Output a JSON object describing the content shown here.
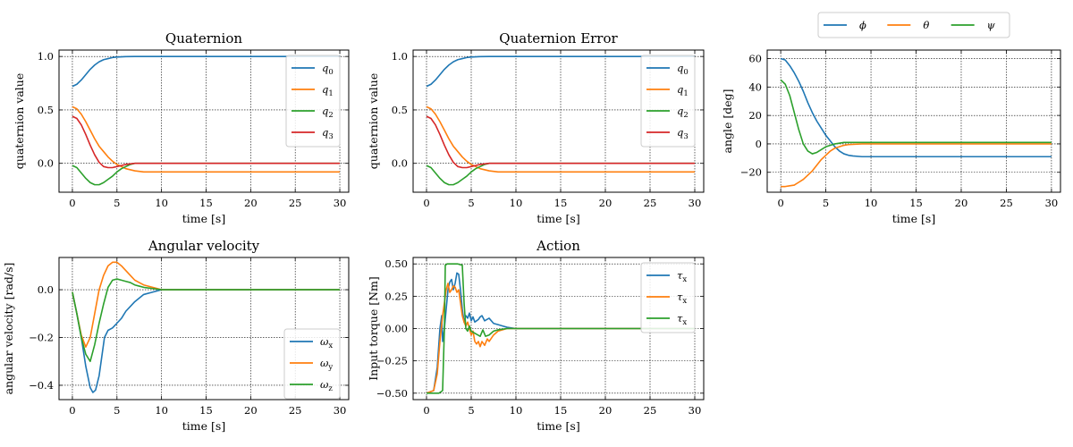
{
  "colors": {
    "blue": "#1f77b4",
    "orange": "#ff7f0e",
    "green": "#2ca02c",
    "red": "#d62728"
  },
  "chart_data": [
    {
      "type": "line",
      "title": "Quaternion",
      "xlabel": "time [s]",
      "ylabel": "quaternion value",
      "xlim": [
        -1.5,
        31
      ],
      "ylim": [
        -0.27,
        1.06
      ],
      "xticks": [
        0,
        5,
        10,
        15,
        20,
        25,
        30
      ],
      "yticks": [
        0.0,
        0.5,
        1.0
      ],
      "ytick_labels": [
        "0.0",
        "0.5",
        "1.0"
      ],
      "grid": true,
      "legend_position": "upper-right",
      "series": [
        {
          "name": "q0",
          "sub": "0",
          "color": "#1f77b4",
          "x": [
            0,
            0.5,
            1,
            1.5,
            2,
            2.5,
            3,
            3.5,
            4,
            4.5,
            5,
            6,
            7,
            8,
            10,
            15,
            20,
            25,
            30
          ],
          "y": [
            0.72,
            0.74,
            0.78,
            0.83,
            0.88,
            0.92,
            0.95,
            0.97,
            0.98,
            0.99,
            0.995,
            0.999,
            1.0,
            1.0,
            1.0,
            1.0,
            1.0,
            1.0,
            1.0
          ]
        },
        {
          "name": "q1",
          "sub": "1",
          "color": "#ff7f0e",
          "x": [
            0,
            0.5,
            1,
            1.5,
            2,
            2.5,
            3,
            3.5,
            4,
            4.5,
            5,
            5.5,
            6,
            7,
            8,
            10,
            15,
            20,
            25,
            30
          ],
          "y": [
            0.53,
            0.51,
            0.46,
            0.39,
            0.31,
            0.23,
            0.16,
            0.11,
            0.06,
            0.02,
            -0.01,
            -0.03,
            -0.05,
            -0.07,
            -0.08,
            -0.08,
            -0.08,
            -0.08,
            -0.08,
            -0.08
          ]
        },
        {
          "name": "q2",
          "sub": "2",
          "color": "#2ca02c",
          "x": [
            0,
            0.5,
            1,
            1.5,
            2,
            2.5,
            3,
            3.5,
            4,
            4.5,
            5,
            5.5,
            6,
            6.5,
            7,
            8,
            10,
            15,
            20,
            25,
            30
          ],
          "y": [
            -0.02,
            -0.04,
            -0.09,
            -0.14,
            -0.18,
            -0.2,
            -0.2,
            -0.18,
            -0.15,
            -0.12,
            -0.08,
            -0.05,
            -0.03,
            -0.01,
            0.0,
            0.0,
            0.0,
            0.0,
            0.0,
            0.0,
            0.0
          ]
        },
        {
          "name": "q3",
          "sub": "3",
          "color": "#d62728",
          "x": [
            0,
            0.5,
            1,
            1.5,
            2,
            2.5,
            3,
            3.5,
            4,
            4.5,
            5,
            5.5,
            6,
            7,
            8,
            10,
            15,
            20,
            25,
            30
          ],
          "y": [
            0.44,
            0.42,
            0.36,
            0.27,
            0.17,
            0.08,
            0.01,
            -0.03,
            -0.04,
            -0.04,
            -0.03,
            -0.02,
            -0.01,
            0.0,
            0.0,
            0.0,
            0.0,
            0.0,
            0.0,
            0.0
          ]
        }
      ]
    },
    {
      "type": "line",
      "title": "Quaternion Error",
      "xlabel": "time [s]",
      "ylabel": "quaternion value",
      "xlim": [
        -1.5,
        31
      ],
      "ylim": [
        -0.27,
        1.06
      ],
      "xticks": [
        0,
        5,
        10,
        15,
        20,
        25,
        30
      ],
      "yticks": [
        0.0,
        0.5,
        1.0
      ],
      "ytick_labels": [
        "0.0",
        "0.5",
        "1.0"
      ],
      "grid": true,
      "legend_position": "upper-right",
      "series": [
        {
          "name": "q0",
          "sub": "0",
          "color": "#1f77b4",
          "x": [
            0,
            0.5,
            1,
            1.5,
            2,
            2.5,
            3,
            3.5,
            4,
            4.5,
            5,
            6,
            7,
            8,
            10,
            15,
            20,
            25,
            30
          ],
          "y": [
            0.72,
            0.74,
            0.78,
            0.83,
            0.88,
            0.92,
            0.95,
            0.97,
            0.98,
            0.99,
            0.995,
            0.999,
            1.0,
            1.0,
            1.0,
            1.0,
            1.0,
            1.0,
            1.0
          ]
        },
        {
          "name": "q1",
          "sub": "1",
          "color": "#ff7f0e",
          "x": [
            0,
            0.5,
            1,
            1.5,
            2,
            2.5,
            3,
            3.5,
            4,
            4.5,
            5,
            5.5,
            6,
            7,
            8,
            10,
            15,
            20,
            25,
            30
          ],
          "y": [
            0.53,
            0.51,
            0.46,
            0.39,
            0.31,
            0.23,
            0.16,
            0.11,
            0.06,
            0.02,
            -0.01,
            -0.03,
            -0.05,
            -0.07,
            -0.08,
            -0.08,
            -0.08,
            -0.08,
            -0.08,
            -0.08
          ]
        },
        {
          "name": "q2",
          "sub": "2",
          "color": "#2ca02c",
          "x": [
            0,
            0.5,
            1,
            1.5,
            2,
            2.5,
            3,
            3.5,
            4,
            4.5,
            5,
            5.5,
            6,
            6.5,
            7,
            8,
            10,
            15,
            20,
            25,
            30
          ],
          "y": [
            -0.02,
            -0.04,
            -0.09,
            -0.14,
            -0.18,
            -0.2,
            -0.2,
            -0.18,
            -0.15,
            -0.12,
            -0.08,
            -0.05,
            -0.03,
            -0.01,
            0.0,
            0.0,
            0.0,
            0.0,
            0.0,
            0.0,
            0.0
          ]
        },
        {
          "name": "q3",
          "sub": "3",
          "color": "#d62728",
          "x": [
            0,
            0.5,
            1,
            1.5,
            2,
            2.5,
            3,
            3.5,
            4,
            4.5,
            5,
            5.5,
            6,
            7,
            8,
            10,
            15,
            20,
            25,
            30
          ],
          "y": [
            0.44,
            0.42,
            0.36,
            0.27,
            0.17,
            0.08,
            0.01,
            -0.03,
            -0.04,
            -0.04,
            -0.03,
            -0.02,
            -0.01,
            0.0,
            0.0,
            0.0,
            0.0,
            0.0,
            0.0,
            0.0
          ]
        }
      ]
    },
    {
      "type": "line",
      "title": "",
      "xlabel": "time [s]",
      "ylabel": "angle [deg]",
      "xlim": [
        -1.5,
        31
      ],
      "ylim": [
        -34,
        66
      ],
      "xticks": [
        0,
        5,
        10,
        15,
        20,
        25,
        30
      ],
      "yticks": [
        -20,
        0,
        20,
        40,
        60
      ],
      "ytick_labels": [
        "−20",
        "0",
        "20",
        "40",
        "60"
      ],
      "grid": true,
      "legend_position": "above-plot",
      "series": [
        {
          "name": "ϕ",
          "sub": "",
          "color": "#1f77b4",
          "x": [
            0,
            0.5,
            1,
            1.5,
            2,
            2.5,
            3,
            3.5,
            4,
            4.5,
            5,
            5.5,
            6,
            6.5,
            7,
            7.5,
            8,
            9,
            10,
            12,
            15,
            20,
            25,
            30
          ],
          "y": [
            60,
            59,
            55,
            50,
            44,
            37,
            29,
            22,
            16,
            11,
            6,
            2,
            -2,
            -5,
            -7,
            -8,
            -8.5,
            -9,
            -9,
            -9,
            -9,
            -9,
            -9,
            -9
          ]
        },
        {
          "name": "θ",
          "sub": "",
          "color": "#ff7f0e",
          "x": [
            0,
            0.5,
            1,
            1.5,
            2,
            2.5,
            3,
            3.5,
            4,
            4.5,
            5,
            5.5,
            6,
            6.5,
            7,
            7.5,
            8,
            9,
            10,
            15,
            20,
            25,
            30
          ],
          "y": [
            -30,
            -30,
            -29.5,
            -29,
            -27,
            -25,
            -22,
            -19,
            -15,
            -11,
            -8,
            -5,
            -3,
            -2,
            -1,
            -0.5,
            -0.3,
            0,
            0,
            0,
            0,
            0,
            0
          ]
        },
        {
          "name": "ψ",
          "sub": "",
          "color": "#2ca02c",
          "x": [
            0,
            0.5,
            1,
            1.5,
            2,
            2.5,
            3,
            3.5,
            4,
            4.5,
            5,
            5.5,
            6,
            6.5,
            7,
            7.5,
            8,
            9,
            10,
            15,
            20,
            25,
            30
          ],
          "y": [
            45,
            42,
            34,
            22,
            10,
            0,
            -5,
            -7,
            -6,
            -4,
            -2,
            -1,
            0,
            0.5,
            1,
            1,
            1,
            1,
            1,
            1,
            1,
            1,
            1
          ]
        }
      ]
    },
    {
      "type": "line",
      "title": "Angular velocity",
      "xlabel": "time [s]",
      "ylabel": "angular velocity [rad/s]",
      "xlim": [
        -1.5,
        31
      ],
      "ylim": [
        -0.46,
        0.135
      ],
      "xticks": [
        0,
        5,
        10,
        15,
        20,
        25,
        30
      ],
      "yticks": [
        -0.4,
        -0.2,
        0.0
      ],
      "ytick_labels": [
        "−0.4",
        "−0.2",
        "0.0"
      ],
      "grid": true,
      "legend_position": "lower-right",
      "series": [
        {
          "name": "ωx",
          "sub": "x",
          "color": "#1f77b4",
          "x": [
            0,
            0.5,
            1,
            1.5,
            2,
            2.3,
            2.6,
            3,
            3.3,
            3.6,
            4,
            4.5,
            5,
            5.5,
            6,
            7,
            8,
            9,
            10,
            12,
            15,
            20,
            25,
            30
          ],
          "y": [
            -0.01,
            -0.1,
            -0.2,
            -0.32,
            -0.41,
            -0.43,
            -0.42,
            -0.36,
            -0.28,
            -0.2,
            -0.17,
            -0.16,
            -0.14,
            -0.12,
            -0.09,
            -0.05,
            -0.02,
            -0.01,
            0.0,
            0.0,
            0.0,
            0.0,
            0.0,
            0.0
          ]
        },
        {
          "name": "ωy",
          "sub": "y",
          "color": "#ff7f0e",
          "x": [
            0,
            0.5,
            1,
            1.5,
            2,
            2.5,
            3,
            3.5,
            4,
            4.5,
            5,
            5.5,
            6,
            6.5,
            7,
            7.5,
            8,
            9,
            10,
            12,
            15,
            20,
            25,
            30
          ],
          "y": [
            -0.01,
            -0.1,
            -0.19,
            -0.24,
            -0.2,
            -0.1,
            0.0,
            0.06,
            0.1,
            0.115,
            0.115,
            0.1,
            0.08,
            0.06,
            0.04,
            0.03,
            0.02,
            0.01,
            0.0,
            0.0,
            0.0,
            0.0,
            0.0,
            0.0
          ]
        },
        {
          "name": "ωz",
          "sub": "z",
          "color": "#2ca02c",
          "x": [
            0,
            0.5,
            1,
            1.5,
            2,
            2.5,
            3,
            3.5,
            4,
            4.5,
            5,
            5.5,
            6,
            6.5,
            7,
            7.5,
            8,
            9,
            10,
            12,
            15,
            20,
            25,
            30
          ],
          "y": [
            -0.01,
            -0.1,
            -0.2,
            -0.27,
            -0.3,
            -0.23,
            -0.14,
            -0.06,
            0.01,
            0.04,
            0.045,
            0.04,
            0.035,
            0.03,
            0.02,
            0.015,
            0.01,
            0.005,
            0.0,
            0.0,
            0.0,
            0.0,
            0.0,
            0.0
          ]
        }
      ]
    },
    {
      "type": "line",
      "title": "Action",
      "xlabel": "time [s]",
      "ylabel": "Input torque [Nm]",
      "xlim": [
        -1.5,
        31
      ],
      "ylim": [
        -0.55,
        0.55
      ],
      "xticks": [
        0,
        5,
        10,
        15,
        20,
        25,
        30
      ],
      "yticks": [
        -0.5,
        -0.25,
        0.0,
        0.25,
        0.5
      ],
      "ytick_labels": [
        "−0.50",
        "−0.25",
        "0.00",
        "0.25",
        "0.50"
      ],
      "grid": true,
      "legend_position": "upper-right",
      "series": [
        {
          "name": "τx",
          "sub": "x",
          "color": "#1f77b4",
          "x": [
            0,
            0.8,
            1.2,
            1.5,
            1.7,
            1.8,
            2.0,
            2.2,
            2.4,
            2.6,
            2.8,
            3.0,
            3.2,
            3.4,
            3.6,
            3.8,
            4.0,
            4.2,
            4.4,
            4.6,
            4.8,
            5.0,
            5.2,
            5.4,
            5.6,
            5.8,
            6.0,
            6.2,
            6.5,
            7,
            7.5,
            8,
            8.5,
            9,
            10,
            15,
            20,
            25,
            30
          ],
          "y": [
            -0.5,
            -0.48,
            -0.3,
            0.0,
            0.1,
            -0.1,
            0.0,
            0.15,
            0.3,
            0.36,
            0.38,
            0.3,
            0.35,
            0.43,
            0.42,
            0.3,
            0.15,
            0.05,
            0.1,
            0.08,
            0.12,
            0.06,
            0.09,
            0.05,
            0.06,
            0.07,
            0.09,
            0.1,
            0.06,
            0.08,
            0.04,
            0.03,
            0.02,
            0.01,
            0.0,
            0.0,
            0.0,
            0.0,
            0.0
          ]
        },
        {
          "name": "τx",
          "sub": "x",
          "color": "#ff7f0e",
          "x": [
            0,
            0.8,
            1.2,
            1.5,
            1.8,
            2.0,
            2.2,
            2.4,
            2.6,
            2.8,
            3.0,
            3.2,
            3.4,
            3.6,
            3.8,
            4.0,
            4.2,
            4.4,
            4.6,
            4.8,
            5.0,
            5.2,
            5.4,
            5.6,
            5.8,
            6.0,
            6.2,
            6.5,
            6.8,
            7.0,
            7.5,
            8,
            9,
            10,
            15,
            20,
            25,
            30
          ],
          "y": [
            -0.5,
            -0.48,
            -0.35,
            -0.1,
            0.1,
            0.2,
            0.3,
            0.35,
            0.28,
            0.3,
            0.33,
            0.32,
            0.28,
            0.3,
            0.2,
            0.1,
            0.05,
            0.02,
            0.05,
            0.0,
            -0.05,
            -0.02,
            -0.1,
            -0.12,
            -0.1,
            -0.14,
            -0.1,
            -0.13,
            -0.08,
            -0.1,
            -0.05,
            -0.02,
            0.0,
            0.0,
            0.0,
            0.0,
            0.0,
            0.0
          ]
        },
        {
          "name": "τx",
          "sub": "x",
          "color": "#2ca02c",
          "x": [
            0,
            1.4,
            1.8,
            2.0,
            2.1,
            2.3,
            3.0,
            3.5,
            4.0,
            4.2,
            4.4,
            4.6,
            4.8,
            5.0,
            5.5,
            6.0,
            6.3,
            6.6,
            7.0,
            7.5,
            8,
            9,
            10,
            15,
            20,
            25,
            30
          ],
          "y": [
            -0.5,
            -0.5,
            -0.48,
            0.0,
            0.49,
            0.5,
            0.5,
            0.5,
            0.49,
            0.2,
            0.0,
            -0.02,
            0.02,
            -0.02,
            -0.04,
            -0.06,
            -0.01,
            -0.06,
            -0.05,
            -0.02,
            -0.01,
            0.0,
            0.0,
            0.0,
            0.0,
            0.0,
            0.0
          ]
        }
      ]
    }
  ]
}
